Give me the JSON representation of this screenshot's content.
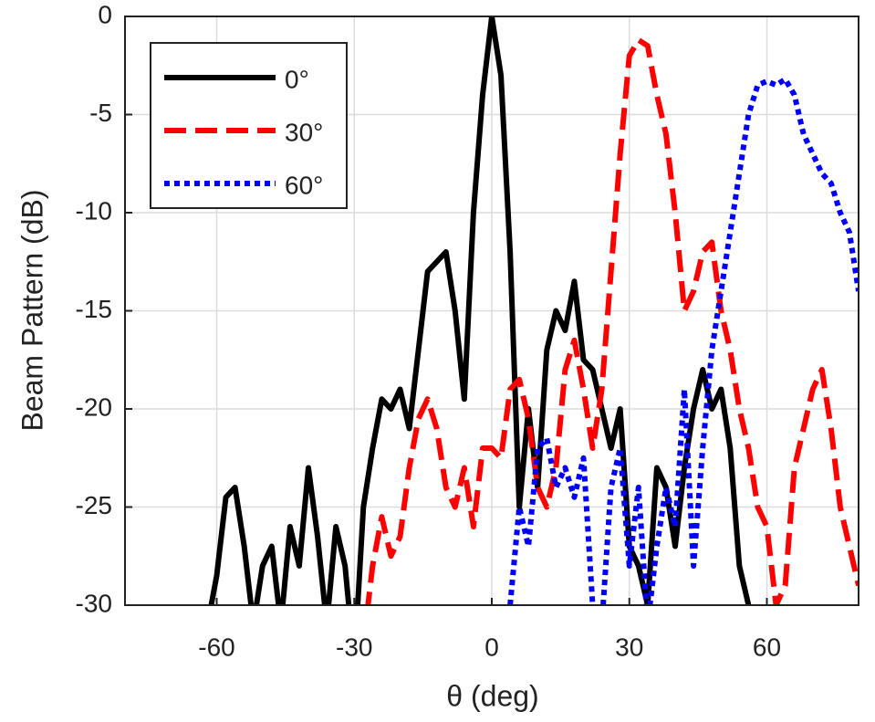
{
  "chart_data": {
    "type": "line",
    "xlabel": "θ (deg)",
    "ylabel": "Beam Pattern (dB)",
    "x": [
      -80,
      -78,
      -76,
      -74,
      -72,
      -70,
      -68,
      -66,
      -64,
      -62,
      -60,
      -58,
      -56,
      -54,
      -52,
      -50,
      -48,
      -46,
      -44,
      -42,
      -40,
      -38,
      -36,
      -34,
      -32,
      -30,
      -28,
      -26,
      -24,
      -22,
      -20,
      -18,
      -16,
      -14,
      -12,
      -10,
      -8,
      -6,
      -4,
      -2,
      0,
      2,
      4,
      6,
      8,
      10,
      12,
      14,
      16,
      18,
      20,
      22,
      24,
      26,
      28,
      30,
      32,
      34,
      36,
      38,
      40,
      42,
      44,
      46,
      48,
      50,
      52,
      54,
      56,
      58,
      60,
      62,
      64,
      66,
      68,
      70,
      72,
      74,
      76,
      78,
      80
    ],
    "series": [
      {
        "name": "0°",
        "color": "#000000",
        "dash": "solid",
        "values": [
          null,
          null,
          null,
          null,
          null,
          null,
          null,
          null,
          null,
          -31,
          -28.5,
          -24.5,
          -24,
          -27,
          -31,
          -28,
          -27,
          -31,
          -26,
          -28,
          -23,
          -26.5,
          -31,
          -26,
          -28,
          -33,
          -25,
          -22,
          -19.5,
          -20,
          -19,
          -21,
          -17,
          -13,
          -12.5,
          -12,
          -15,
          -19.5,
          -10,
          -4,
          0,
          -3,
          -12,
          -25,
          -20,
          -24,
          -17,
          -15,
          -16,
          -13.5,
          -17.5,
          -18,
          -20,
          -22,
          -20,
          -27,
          -28,
          -30,
          -23,
          -24,
          -27,
          -23,
          -20,
          -18,
          -20,
          -19,
          -22,
          -28,
          -30,
          -31,
          -31,
          null,
          null,
          null,
          null,
          null,
          null,
          null,
          null,
          null,
          null
        ]
      },
      {
        "name": "30°",
        "color": "#ff0000",
        "dash": "dashed",
        "values": [
          null,
          null,
          null,
          null,
          null,
          null,
          null,
          null,
          null,
          null,
          null,
          null,
          null,
          null,
          null,
          null,
          null,
          null,
          null,
          null,
          null,
          null,
          null,
          null,
          null,
          null,
          -32,
          -28,
          -25.5,
          -27.5,
          -26.5,
          -23,
          -20.5,
          -19.5,
          -21,
          -24,
          -25,
          -23,
          -26,
          -22,
          -22,
          -22.5,
          -19,
          -18.5,
          -20.5,
          -24,
          -25,
          -23,
          -18,
          -16.5,
          -19,
          -22,
          -19,
          -13,
          -7,
          -2,
          -1.2,
          -1.5,
          -4,
          -6,
          -10,
          -15,
          -14,
          -12,
          -11.5,
          -15,
          -17,
          -20,
          -22,
          -25,
          -26,
          -30,
          -29,
          -23,
          -21,
          -19,
          -18,
          -21,
          -25,
          -27,
          -29
        ]
      },
      {
        "name": "60°",
        "color": "#0000ff",
        "dash": "dotted",
        "values": [
          null,
          null,
          null,
          null,
          null,
          null,
          null,
          null,
          null,
          null,
          null,
          null,
          null,
          null,
          null,
          null,
          null,
          null,
          null,
          null,
          null,
          null,
          null,
          null,
          null,
          null,
          null,
          null,
          null,
          null,
          null,
          null,
          null,
          null,
          null,
          null,
          null,
          null,
          null,
          null,
          null,
          null,
          -30,
          -25,
          -27,
          -22,
          -21.5,
          -24,
          -23,
          -24.5,
          -22.5,
          -30,
          -31,
          -24,
          -22,
          -28,
          -24,
          -31,
          -27,
          -24,
          -26,
          -19,
          -28,
          -22,
          -17,
          -14,
          -11,
          -8,
          -5,
          -3.5,
          -3.3,
          -3.5,
          -3.2,
          -4,
          -6,
          -7,
          -8,
          -8.5,
          -10,
          -11,
          -14
        ]
      }
    ],
    "xlim": [
      -80,
      80
    ],
    "xticks": [
      -60,
      -30,
      0,
      30,
      60
    ],
    "ylim": [
      -30,
      0
    ],
    "yticks": [
      -30,
      -25,
      -20,
      -15,
      -10,
      -5,
      0
    ],
    "grid": true,
    "legend": "upper left"
  }
}
